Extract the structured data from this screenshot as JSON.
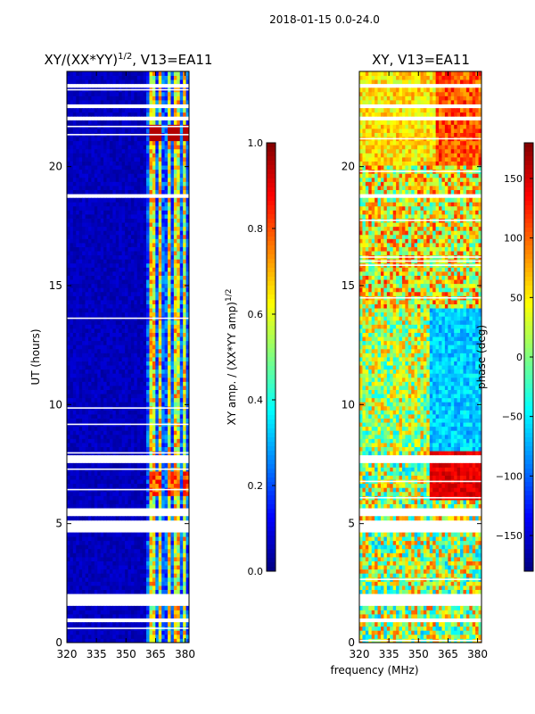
{
  "figure_title": "2018-01-15 0.0-24.0",
  "shared_xlabel": "frequency (MHz)",
  "chart_data": [
    {
      "type": "heatmap",
      "title": "XY/(XX*YY)^1/2, V13=EA11",
      "title_main": "XY/(XX*YY)",
      "title_sup": "1/2",
      "title_tail": ", V13=EA11",
      "ylabel": "UT (hours)",
      "xlim": [
        320,
        382
      ],
      "ylim": [
        0,
        24
      ],
      "xticks": [
        320,
        335,
        350,
        365,
        380
      ],
      "yticks": [
        0,
        5,
        10,
        15,
        20
      ],
      "colorbar": {
        "label": "XY amp. / (XX*YY amp)^1/2",
        "label_main": "XY amp. / (XX*YY amp)",
        "label_sup": "1/2",
        "range": [
          0.0,
          1.0
        ],
        "ticks": [
          "0.0",
          "0.2",
          "0.4",
          "0.6",
          "0.8",
          "1.0"
        ],
        "tick_values": [
          0.0,
          0.2,
          0.4,
          0.6,
          0.8,
          1.0
        ]
      },
      "masked_ut_ranges": [
        [
          0.8,
          1.0
        ],
        [
          1.3,
          1.4
        ],
        [
          1.6,
          2.1
        ],
        [
          4.7,
          5.2
        ],
        [
          5.4,
          5.6
        ],
        [
          7.5,
          7.9
        ],
        [
          18.7,
          18.9
        ],
        [
          21.9,
          22.1
        ],
        [
          22.5,
          22.6
        ],
        [
          23.3,
          23.4
        ]
      ],
      "description_bands": "low amplitude (~0.05) below 361 MHz; high-amplitude channels near 363, 367, 372, 376, 380 MHz"
    },
    {
      "type": "heatmap",
      "title": "XY, V13=EA11",
      "ylabel": "",
      "xlim": [
        320,
        382
      ],
      "ylim": [
        0,
        24
      ],
      "xticks": [
        320,
        335,
        350,
        365,
        380
      ],
      "yticks": [
        0,
        5,
        10,
        15,
        20
      ],
      "colorbar": {
        "label": "phase (deg)",
        "range": [
          -180,
          180
        ],
        "ticks": [
          "−150",
          "−100",
          "−50",
          "0",
          "50",
          "100",
          "150"
        ],
        "tick_values": [
          -150,
          -100,
          -50,
          0,
          50,
          100,
          150
        ]
      },
      "masked_ut_ranges": [
        [
          0.8,
          1.0
        ],
        [
          1.3,
          1.4
        ],
        [
          1.6,
          2.1
        ],
        [
          4.7,
          5.2
        ],
        [
          5.4,
          5.6
        ],
        [
          7.5,
          7.9
        ],
        [
          18.7,
          18.9
        ],
        [
          21.9,
          22.1
        ],
        [
          22.5,
          22.6
        ],
        [
          23.3,
          23.4
        ]
      ]
    }
  ]
}
